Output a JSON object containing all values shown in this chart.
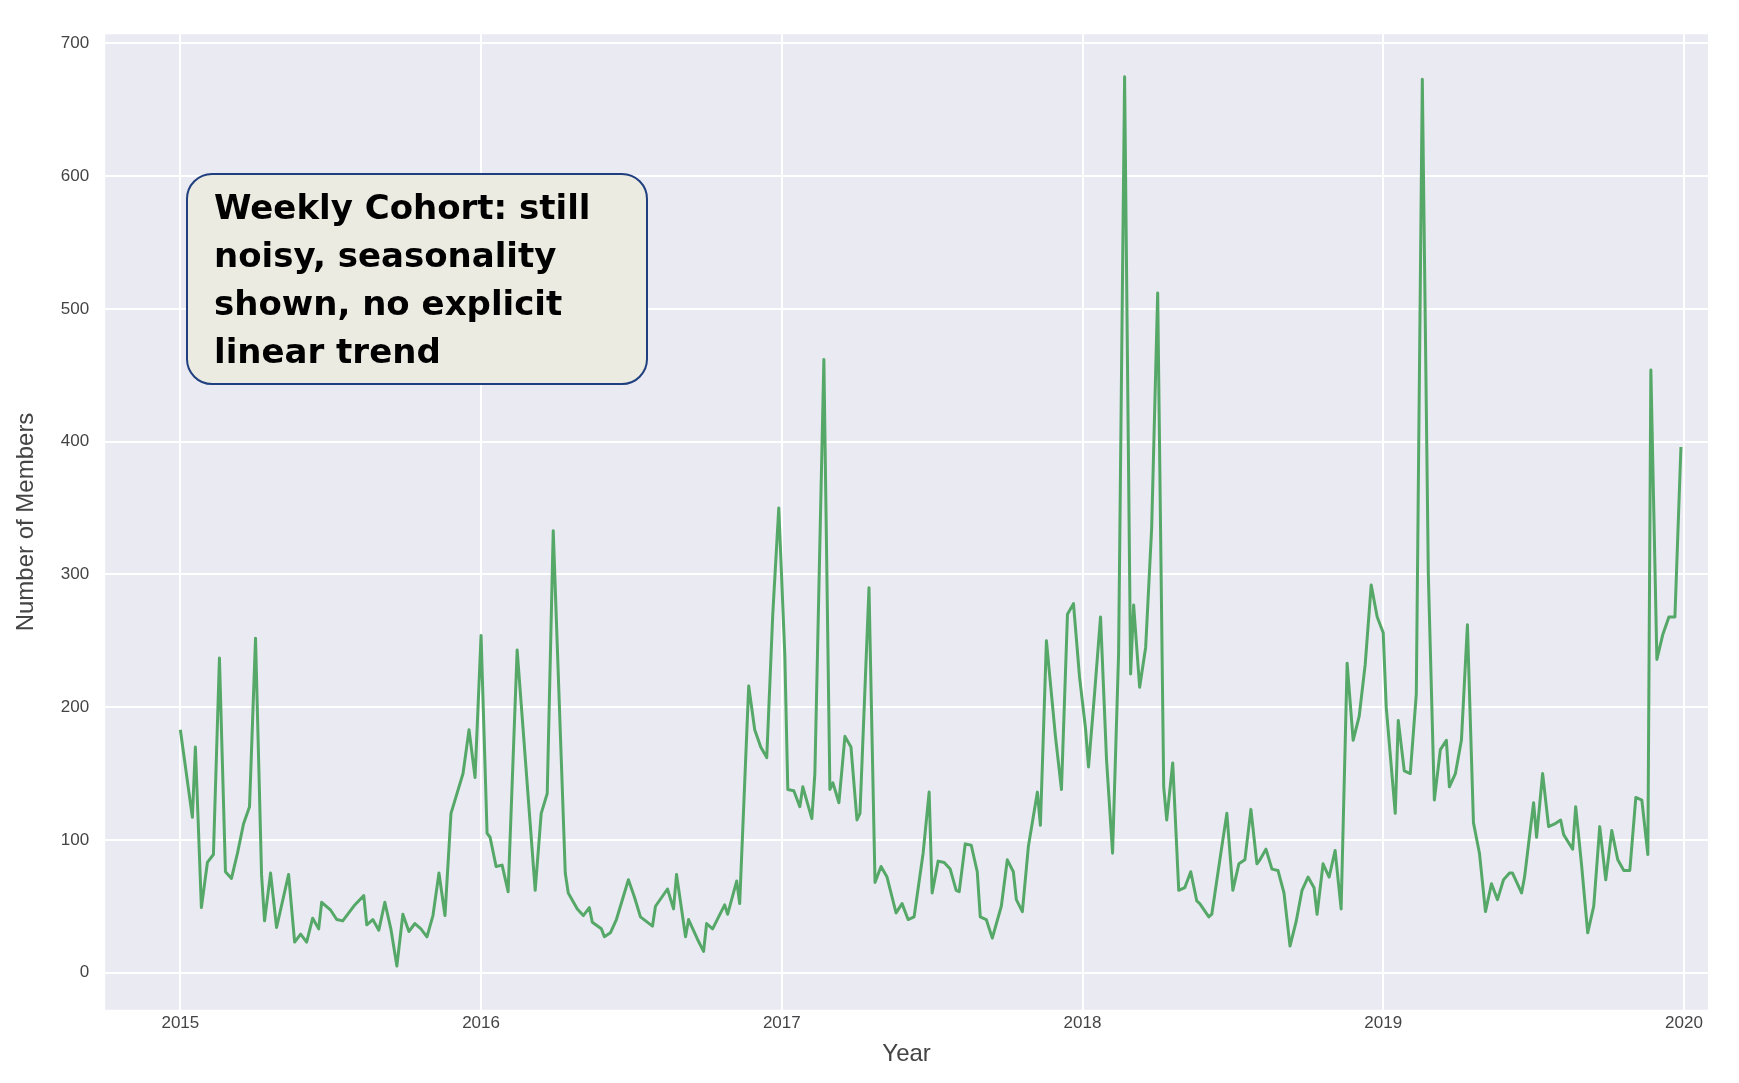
{
  "chart_data": {
    "type": "line",
    "xlabel": "Year",
    "ylabel": "Number of Members",
    "annotations": [
      "Weekly  Cohort: still noisy, seasonality shown, no explicit linear trend"
    ],
    "xlim": [
      2014.75,
      2020.08
    ],
    "xticks": [
      2015,
      2016,
      2017,
      2018,
      2019,
      2020
    ],
    "ylim": [
      -28,
      707
    ],
    "yticks": [
      0,
      100,
      200,
      300,
      400,
      500,
      600,
      700
    ],
    "grid": true,
    "legend": false,
    "marker": "none",
    "line_style": "solid",
    "series": [
      {
        "color": "#55a868",
        "x": [
          2015.0,
          2015.04,
          2015.05,
          2015.07,
          2015.09,
          2015.11,
          2015.13,
          2015.15,
          2015.17,
          2015.19,
          2015.21,
          2015.23,
          2015.25,
          2015.27,
          2015.28,
          2015.3,
          2015.32,
          2015.36,
          2015.38,
          2015.4,
          2015.42,
          2015.44,
          2015.46,
          2015.47,
          2015.5,
          2015.52,
          2015.54,
          2015.56,
          2015.58,
          2015.61,
          2015.62,
          2015.64,
          2015.66,
          2015.68,
          2015.7,
          2015.72,
          2015.74,
          2015.76,
          2015.78,
          2015.8,
          2015.82,
          2015.84,
          2015.86,
          2015.88,
          2015.9,
          2015.94,
          2015.96,
          2015.98,
          2016.0,
          2016.02,
          2016.03,
          2016.05,
          2016.07,
          2016.09,
          2016.12,
          2016.18,
          2016.2,
          2016.22,
          2016.24,
          2016.28,
          2016.29,
          2016.32,
          2016.34,
          2016.36,
          2016.37,
          2016.4,
          2016.41,
          2016.43,
          2016.45,
          2016.49,
          2016.51,
          2016.53,
          2016.57,
          2016.58,
          2016.62,
          2016.64,
          2016.65,
          2016.68,
          2016.69,
          2016.72,
          2016.74,
          2016.75,
          2016.77,
          2016.79,
          2016.81,
          2016.82,
          2016.85,
          2016.86,
          2016.89,
          2016.91,
          2016.93,
          2016.95,
          2016.97,
          2016.99,
          2017.01,
          2017.02,
          2017.04,
          2017.06,
          2017.07,
          2017.1,
          2017.11,
          2017.14,
          2017.16,
          2017.17,
          2017.19,
          2017.21,
          2017.23,
          2017.25,
          2017.26,
          2017.29,
          2017.31,
          2017.33,
          2017.35,
          2017.36,
          2017.38,
          2017.4,
          2017.42,
          2017.44,
          2017.47,
          2017.49,
          2017.5,
          2017.52,
          2017.54,
          2017.56,
          2017.58,
          2017.59,
          2017.61,
          2017.63,
          2017.65,
          2017.66,
          2017.68,
          2017.7,
          2017.73,
          2017.75,
          2017.77,
          2017.78,
          2017.8,
          2017.82,
          2017.85,
          2017.86,
          2017.88,
          2017.91,
          2017.93,
          2017.95,
          2017.97,
          2017.99,
          2018.01,
          2018.02,
          2018.04,
          2018.06,
          2018.08,
          2018.1,
          2018.12,
          2018.14,
          2018.16,
          2018.17,
          2018.19,
          2018.21,
          2018.23,
          2018.25,
          2018.27,
          2018.28,
          2018.3,
          2018.32,
          2018.34,
          2018.36,
          2018.38,
          2018.39,
          2018.42,
          2018.43,
          2018.46,
          2018.48,
          2018.5,
          2018.52,
          2018.54,
          2018.56,
          2018.58,
          2018.59,
          2018.61,
          2018.63,
          2018.65,
          2018.67,
          2018.69,
          2018.71,
          2018.73,
          2018.75,
          2018.77,
          2018.78,
          2018.8,
          2018.82,
          2018.84,
          2018.86,
          2018.88,
          2018.9,
          2018.92,
          2018.94,
          2018.96,
          2018.98,
          2019.0,
          2019.01,
          2019.04,
          2019.05,
          2019.07,
          2019.09,
          2019.11,
          2019.13,
          2019.15,
          2019.17,
          2019.19,
          2019.21,
          2019.22,
          2019.24,
          2019.26,
          2019.28,
          2019.3,
          2019.32,
          2019.34,
          2019.36,
          2019.38,
          2019.4,
          2019.42,
          2019.43,
          2019.46,
          2019.47,
          2019.5,
          2019.51,
          2019.53,
          2019.55,
          2019.57,
          2019.59,
          2019.6,
          2019.63,
          2019.64,
          2019.66,
          2019.68,
          2019.7,
          2019.72,
          2019.74,
          2019.76,
          2019.78,
          2019.8,
          2019.82,
          2019.84,
          2019.86,
          2019.88,
          2019.89,
          2019.91,
          2019.93,
          2019.95,
          2019.97,
          2019.99
        ],
        "values": [
          183,
          117,
          170,
          49,
          83,
          89,
          237,
          76,
          71,
          90,
          112,
          125,
          252,
          74,
          39,
          75,
          34,
          74,
          23,
          29,
          23,
          41,
          33,
          53,
          47,
          40,
          39,
          45,
          51,
          58,
          36,
          40,
          32,
          53,
          33,
          5,
          44,
          31,
          37,
          33,
          27,
          43,
          75,
          43,
          120,
          150,
          183,
          147,
          254,
          105,
          102,
          80,
          81,
          61,
          243,
          62,
          120,
          135,
          333,
          75,
          60,
          48,
          43,
          49,
          38,
          33,
          27,
          30,
          40,
          70,
          57,
          42,
          35,
          50,
          63,
          48,
          74,
          27,
          40,
          25,
          16,
          37,
          33,
          42,
          51,
          44,
          69,
          52,
          216,
          183,
          170,
          162,
          270,
          350,
          240,
          138,
          137,
          125,
          140,
          116,
          150,
          462,
          138,
          143,
          128,
          178,
          170,
          115,
          120,
          290,
          68,
          80,
          72,
          63,
          45,
          52,
          40,
          42,
          90,
          136,
          60,
          84,
          83,
          78,
          62,
          61,
          97,
          96,
          76,
          42,
          40,
          26,
          50,
          85,
          76,
          55,
          46,
          95,
          136,
          111,
          250,
          178,
          138,
          270,
          278,
          223,
          184,
          155,
          210,
          268,
          160,
          90,
          240,
          675,
          225,
          277,
          215,
          245,
          335,
          512,
          140,
          115,
          158,
          62,
          64,
          76,
          54,
          52,
          42,
          44,
          90,
          120,
          62,
          82,
          85,
          123,
          82,
          85,
          93,
          78,
          77,
          60,
          20,
          38,
          62,
          72,
          64,
          44,
          82,
          72,
          92,
          48,
          233,
          175,
          193,
          232,
          292,
          268,
          256,
          200,
          120,
          190,
          152,
          150,
          210,
          673,
          300,
          130,
          168,
          175,
          140,
          150,
          175,
          262,
          113,
          90,
          46,
          67,
          55,
          70,
          75,
          75,
          60,
          72,
          128,
          102,
          150,
          110,
          112,
          115,
          104,
          93,
          125,
          80,
          30,
          50,
          110,
          70,
          107,
          85,
          77,
          77,
          132,
          130,
          89,
          454,
          236,
          255,
          268,
          268,
          396
        ]
      }
    ]
  }
}
